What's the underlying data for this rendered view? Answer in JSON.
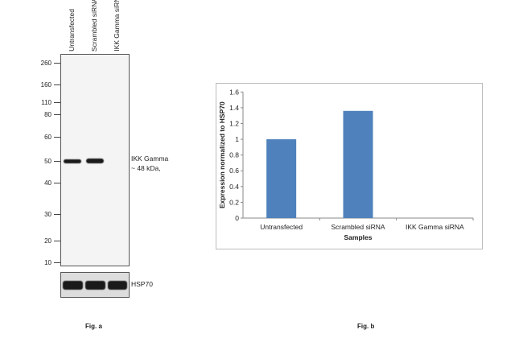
{
  "blot": {
    "lanes": [
      "Untransfected",
      "Scrambled siRNA",
      "IKK Gamma siRNA"
    ],
    "markers": [
      "260",
      "160",
      "110",
      "80",
      "60",
      "50",
      "40",
      "30",
      "20",
      "10"
    ],
    "band_label": "IKK Gamma",
    "band_size": "~ 48 kDa,",
    "loading_control": "HSP70",
    "caption": "Fig. a"
  },
  "chart_data": {
    "type": "bar",
    "categories": [
      "Untransfected",
      "Scrambled siRNA",
      "IKK Gamma siRNA"
    ],
    "values": [
      1.0,
      1.36,
      0
    ],
    "xlabel": "Samples",
    "ylabel": "Expression normalized to HSP70",
    "ylim": [
      0,
      1.6
    ],
    "yticks": [
      "0",
      "0.2",
      "0.4",
      "0.6",
      "0.8",
      "1",
      "1.2",
      "1.4",
      "1.6"
    ],
    "bar_color": "#4f81bd",
    "grid": false,
    "caption": "Fig. b"
  }
}
